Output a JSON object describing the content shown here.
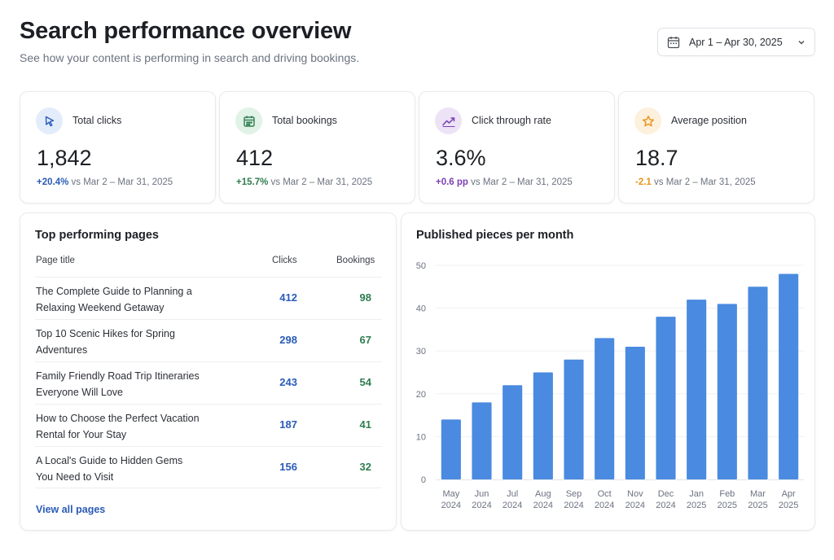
{
  "header": {
    "title": "Search performance overview",
    "subtitle": "See how your content is performing in search and driving bookings.",
    "date_range": "Apr 1 – Apr 30, 2025"
  },
  "kpis": [
    {
      "label": "Total clicks",
      "value": "1,842",
      "change": "+20.4%",
      "compare": "vs Mar 2 – Mar 31, 2025",
      "icon": "cursor-icon",
      "accent": "#2a5bb8",
      "tint": "#e3ecfb"
    },
    {
      "label": "Total bookings",
      "value": "412",
      "change": "+15.7%",
      "compare": "vs Mar 2 – Mar 31, 2025",
      "icon": "calendar-icon",
      "accent": "#2e7d4f",
      "tint": "#e1f2e7"
    },
    {
      "label": "Click through rate",
      "value": "3.6%",
      "change": "+0.6 pp",
      "compare": "vs Mar 2 – Mar 31, 2025",
      "icon": "trend-icon",
      "accent": "#7b3fb5",
      "tint": "#ece3f7"
    },
    {
      "label": "Average position",
      "value": "18.7",
      "change": "-2.1",
      "compare": "vs Mar 2 – Mar 31, 2025",
      "icon": "star-icon",
      "accent": "#e8941a",
      "tint": "#fdf0dc"
    }
  ],
  "top_pages": {
    "title": "Top performing pages",
    "columns": {
      "page": "Page title",
      "clicks": "Clicks",
      "bookings": "Bookings"
    },
    "rows": [
      {
        "line1": "The Complete Guide to Planning a",
        "line2": "Relaxing Weekend Getaway",
        "clicks": "412",
        "bookings": "98"
      },
      {
        "line1": "Top 10 Scenic Hikes for Spring",
        "line2": "Adventures",
        "clicks": "298",
        "bookings": "67"
      },
      {
        "line1": "Family Friendly Road Trip Itineraries",
        "line2": "Everyone Will Love",
        "clicks": "243",
        "bookings": "54"
      },
      {
        "line1": "How to Choose the Perfect Vacation",
        "line2": "Rental for Your Stay",
        "clicks": "187",
        "bookings": "41"
      },
      {
        "line1": "A Local's Guide to Hidden Gems",
        "line2": "You Need to Visit",
        "clicks": "156",
        "bookings": "32"
      }
    ],
    "view_all": "View all pages"
  },
  "chart_data": {
    "type": "bar",
    "title": "Published pieces per month",
    "categories": [
      [
        "May",
        "2024"
      ],
      [
        "Jun",
        "2024"
      ],
      [
        "Jul",
        "2024"
      ],
      [
        "Aug",
        "2024"
      ],
      [
        "Sep",
        "2024"
      ],
      [
        "Oct",
        "2024"
      ],
      [
        "Nov",
        "2024"
      ],
      [
        "Dec",
        "2024"
      ],
      [
        "Jan",
        "2025"
      ],
      [
        "Feb",
        "2025"
      ],
      [
        "Mar",
        "2025"
      ],
      [
        "Apr",
        "2025"
      ]
    ],
    "values": [
      14,
      18,
      22,
      25,
      28,
      33,
      31,
      38,
      42,
      41,
      45,
      48
    ],
    "yticks": [
      0,
      10,
      20,
      30,
      40,
      50
    ],
    "ylim": [
      0,
      50
    ],
    "grid": true,
    "bar_color": "#4a8ae0"
  }
}
